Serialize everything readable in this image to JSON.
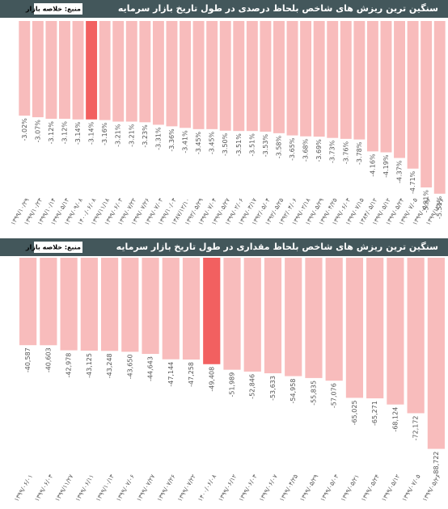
{
  "chart_data": [
    {
      "type": "bar",
      "title": "سنگین ترین ریزش های شاخص بلحاظ درصدی در طول تاریخ بازار سرمایه",
      "source": "منبع: خلاصه بازار",
      "categories": [
        "۱۳۹۹/۱۰/۲۹",
        "۱۳۹۹/۱۰/۲۳",
        "۱۳۹۹/۱۰/۱۴",
        "۱۳۹۹/۰۵/۱۳",
        "۱۳۹۹/۰۹/۰۸",
        "۱۴۰۰/۰۶/۰۸",
        "۱۳۹۹/۱۱/۱۸",
        "۱۳۹۹/۰۶/۰۳",
        "۱۳۹۹/۰۷/۲۲",
        "۱۳۹۹/۰۷/۲۶",
        "۱۳۹۹/۰۷/۰۳",
        "۱۳۹۹/۱۰/۰۳",
        "۱۳۸۷/۱۲/۱۰",
        "۱۳۹۲/۰۵/۲۹",
        "۱۳۹۹/۰۷/۰۴",
        "۱۳۹۹/۰۵/۲۷",
        "۱۳۹۹/۰۲/۰۶",
        "۱۳۹۹/۰۳/۱۷",
        "۱۳۹۲/۰۵/۰۴",
        "۱۳۹۲/۰۵/۲۵",
        "۱۳۹۲/۰۴/۰۶",
        "۱۳۹۹/۰۲/۱۸",
        "۱۳۹۹/۰۵/۲۹",
        "۱۳۹۹/۰۴/۲۵",
        "۱۳۹۹/۰۶/۰۳",
        "۱۳۹۹/۰۷/۱۵",
        "۱۳۸۴/۰۵/۱۲",
        "۱۳۹۹/۰۵/۱۲",
        "۱۳۹۹/۰۵/۲۴",
        "۱۳۹۹/۰۷/۰۵",
        "۱۳۹۹/۰۵/۲۶",
        "۱۳۹۹/۱۲/۲۶"
      ],
      "values": [
        -3.02,
        -3.07,
        -3.12,
        -3.12,
        -3.14,
        -3.14,
        -3.16,
        -3.21,
        -3.21,
        -3.23,
        -3.31,
        -3.36,
        -3.41,
        -3.45,
        -3.45,
        -3.5,
        -3.51,
        -3.51,
        -3.53,
        -3.58,
        -3.65,
        -3.68,
        -3.69,
        -3.73,
        -3.76,
        -3.78,
        -4.16,
        -4.19,
        -4.37,
        -4.71,
        -5.31,
        -5.51
      ],
      "value_labels": [
        "-3.02%",
        "-3.07%",
        "-3.12%",
        "-3.12%",
        "-3.14%",
        "-3.14%",
        "-3.16%",
        "-3.21%",
        "-3.21%",
        "-3.23%",
        "-3.31%",
        "-3.36%",
        "-3.41%",
        "-3.45%",
        "-3.45%",
        "-3.50%",
        "-3.51%",
        "-3.51%",
        "-3.53%",
        "-3.58%",
        "-3.65%",
        "-3.68%",
        "-3.69%",
        "-3.73%",
        "-3.76%",
        "-3.78%",
        "-4.16%",
        "-4.19%",
        "-4.37%",
        "-4.71%",
        "-5.31%",
        "-5.51%"
      ],
      "colors": [
        "#f8bcbc",
        "#f8bcbc",
        "#f8bcbc",
        "#f8bcbc",
        "#f8bcbc",
        "#f26060",
        "#f8bcbc",
        "#f8bcbc",
        "#f8bcbc",
        "#f8bcbc",
        "#f8bcbc",
        "#f8bcbc",
        "#f8bcbc",
        "#f8bcbc",
        "#f8bcbc",
        "#f8bcbc",
        "#f8bcbc",
        "#f8bcbc",
        "#f8bcbc",
        "#f8bcbc",
        "#f8bcbc",
        "#f8bcbc",
        "#f8bcbc",
        "#f8bcbc",
        "#f8bcbc",
        "#f8bcbc",
        "#f8bcbc",
        "#f8bcbc",
        "#f8bcbc",
        "#f8bcbc",
        "#f8bcbc",
        "#f8bcbc"
      ],
      "ylim": [
        0,
        -5.8
      ]
    },
    {
      "type": "bar",
      "title": "سنگین ترین ریزش های شاخص بلحاظ مقداری در طول تاریخ بازار سرمایه",
      "source": "منبع: خلاصه بازار",
      "categories": [
        "۱۳۹۹/۰۶/۰۱",
        "۱۳۹۹/۰۶/۰۳",
        "۱۳۹۹/۱۱/۲۷",
        "۱۳۹۹/۰۶/۱۱",
        "۱۳۹۹/۱۰/۱۳",
        "۱۳۹۹/۰۷/۰۶",
        "۱۳۹۹/۰۷/۲۷",
        "۱۳۹۹/۰۷/۲۶",
        "۱۳۹۹/۰۷/۲۲",
        "۱۴۰۰/۰۶/۰۸",
        "۱۳۹۹/۰۶/۱۲",
        "۱۳۹۹/۰۶/۰۳",
        "۱۳۹۹/۰۶/۰۷",
        "۱۳۹۹/۰۴/۲۵",
        "۱۳۹۹/۰۵/۲۹",
        "۱۳۹۹/۰۵/۰۳",
        "۱۳۹۹/۰۵/۲۱",
        "۱۳۹۹/۰۵/۲۴",
        "۱۳۹۹/۰۵/۱۲",
        "۱۳۹۹/۰۷/۰۵",
        "۱۳۹۹/۰۵/۲۶"
      ],
      "values": [
        -40587,
        -40603,
        -42978,
        -43125,
        -43248,
        -43650,
        -44643,
        -47144,
        -47258,
        -49408,
        -51989,
        -52846,
        -53633,
        -54958,
        -55835,
        -57076,
        -65025,
        -65271,
        -68124,
        -72172,
        -88722
      ],
      "value_labels": [
        "-40,587",
        "-40,603",
        "-42,978",
        "-43,125",
        "-43,248",
        "-43,650",
        "-44,643",
        "-47,144",
        "-47,258",
        "-49,408",
        "-51,989",
        "-52,846",
        "-53,633",
        "-54,958",
        "-55,835",
        "-57,076",
        "-65,025",
        "-65,271",
        "-68,124",
        "-72,172",
        "-88,722"
      ],
      "colors": [
        "#f8bcbc",
        "#f8bcbc",
        "#f8bcbc",
        "#f8bcbc",
        "#f8bcbc",
        "#f8bcbc",
        "#f8bcbc",
        "#f8bcbc",
        "#f8bcbc",
        "#f26060",
        "#f8bcbc",
        "#f8bcbc",
        "#f8bcbc",
        "#f8bcbc",
        "#f8bcbc",
        "#f8bcbc",
        "#f8bcbc",
        "#f8bcbc",
        "#f8bcbc",
        "#f8bcbc",
        "#f8bcbc"
      ],
      "ylim": [
        0,
        -90000
      ]
    }
  ]
}
